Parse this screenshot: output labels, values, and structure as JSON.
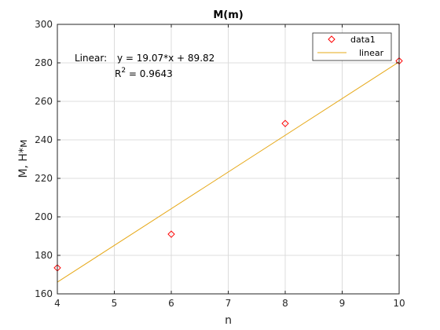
{
  "chart_data": {
    "type": "scatter",
    "title": "M(m)",
    "xlabel": "n",
    "ylabel": "M, H*м",
    "xlim": [
      4,
      10
    ],
    "ylim": [
      160,
      300
    ],
    "xticks": [
      "4",
      "5",
      "6",
      "7",
      "8",
      "9",
      "10"
    ],
    "yticks": [
      "160",
      "180",
      "200",
      "220",
      "240",
      "260",
      "280",
      "300"
    ],
    "grid": true,
    "legend_position": "top-right",
    "series": [
      {
        "name": "data1",
        "kind": "markers",
        "marker": "diamond",
        "color": "#ff0000",
        "x": [
          4,
          6,
          8,
          10
        ],
        "y": [
          173.5,
          191,
          248.5,
          281
        ]
      },
      {
        "name": "linear",
        "kind": "line",
        "color": "#e6a817",
        "slope": 19.07,
        "intercept": 89.82,
        "x": [
          4,
          10
        ]
      }
    ],
    "annotation": {
      "line1_prefix": "Linear:",
      "line1_equation": "y = 19.07*x + 89.82",
      "r2_base": "R",
      "r2_exp": "2",
      "r2_rest": " = 0.9643"
    }
  }
}
